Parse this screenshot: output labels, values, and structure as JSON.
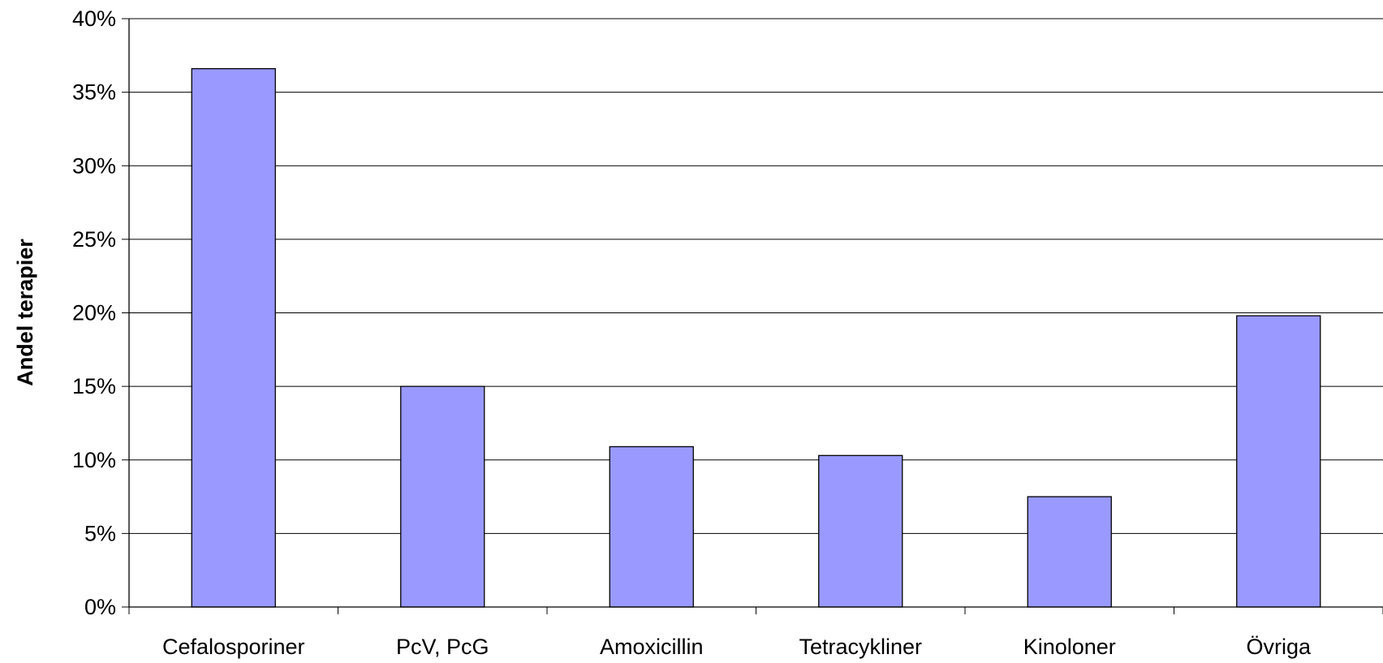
{
  "chart_data": {
    "type": "bar",
    "title": "",
    "xlabel": "",
    "ylabel": "Andel terapier",
    "categories": [
      "Cefalosporiner",
      "PcV, PcG",
      "Amoxicillin",
      "Tetracykliner",
      "Kinoloner",
      "Övriga"
    ],
    "values": [
      36.6,
      15.0,
      10.9,
      10.3,
      7.5,
      19.8
    ],
    "value_unit": "%",
    "ylim": [
      0,
      40
    ],
    "yticks": [
      "0%",
      "5%",
      "10%",
      "15%",
      "20%",
      "25%",
      "30%",
      "35%",
      "40%"
    ],
    "grid": "horizontal",
    "legend": "none",
    "bar_color": "#9999ff",
    "bar_border_color": "#000000"
  }
}
